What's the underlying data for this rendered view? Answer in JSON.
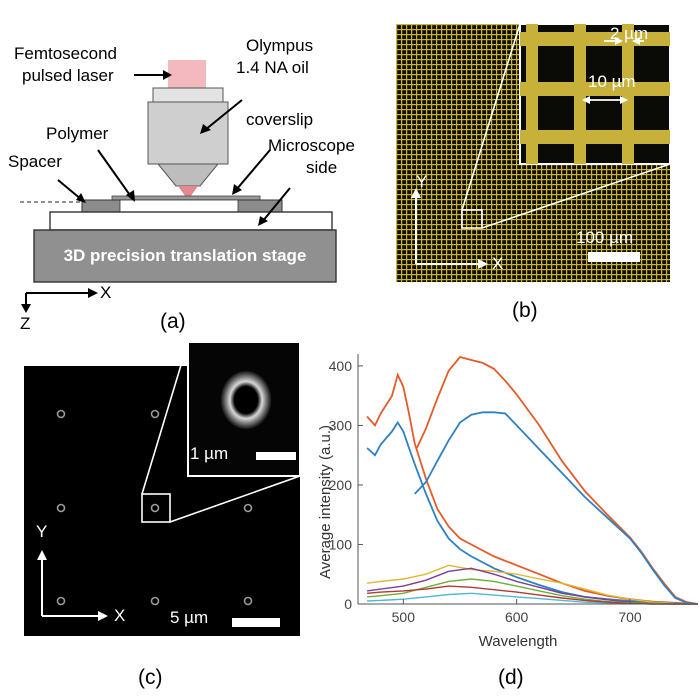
{
  "panel_a": {
    "laser_label_1": "Femtosecond",
    "laser_label_2": "pulsed laser",
    "objective_label_1": "Olympus",
    "objective_label_2": "1.4 NA oil",
    "polymer_label": "Polymer",
    "coverslip_label": "coverslip",
    "spacer_label": "Spacer",
    "microscope_label_1": "Microscope",
    "microscope_label_2": "side",
    "stage_label": "3D precision translation stage",
    "axis_x": "X",
    "axis_z": "Z",
    "caption": "(a)"
  },
  "panel_b": {
    "inset_measure_1": "2 µm",
    "inset_measure_2": "10 µm",
    "axis_y": "Y",
    "axis_x": "X",
    "scale_bar": "100 µm",
    "caption": "(b)"
  },
  "panel_c": {
    "inset_scale": "1 µm",
    "axis_y": "Y",
    "axis_x": "X",
    "scale_bar": "5 µm",
    "caption": "(c)"
  },
  "panel_d": {
    "caption": "(d)"
  },
  "colors": {
    "laser": "#f4b9bf",
    "grid_yellow": "#d9c43a",
    "blue": "#2f80c3",
    "orange": "#e35b2a"
  },
  "chart_data": {
    "type": "line",
    "xlabel": "Wavelength",
    "ylabel": "Average intensity (a.u.)",
    "xlim": [
      460,
      760
    ],
    "ylim": [
      0,
      420
    ],
    "xticks": [
      500,
      600,
      700
    ],
    "yticks": [
      0,
      100,
      200,
      300,
      400
    ],
    "grid": false,
    "series": [
      {
        "color": "#e35b2a",
        "x": [
          468,
          475,
          480,
          490,
          495,
          500,
          505,
          510,
          520,
          530,
          540,
          550,
          560,
          580,
          600,
          620,
          640,
          660,
          680,
          700,
          720,
          740,
          750,
          760
        ],
        "y": [
          315,
          300,
          320,
          350,
          385,
          365,
          320,
          270,
          210,
          160,
          130,
          110,
          100,
          80,
          65,
          50,
          35,
          22,
          14,
          8,
          4,
          2,
          1,
          0
        ]
      },
      {
        "color": "#2f80c3",
        "x": [
          468,
          475,
          480,
          490,
          495,
          500,
          505,
          510,
          520,
          530,
          540,
          550,
          560,
          580,
          600,
          620,
          640,
          660,
          680,
          700,
          720,
          740,
          750,
          760
        ],
        "y": [
          262,
          250,
          268,
          290,
          305,
          290,
          262,
          235,
          185,
          140,
          110,
          92,
          80,
          60,
          45,
          32,
          20,
          12,
          8,
          5,
          3,
          1,
          0,
          0
        ]
      },
      {
        "color": "#e35b2a",
        "x": [
          512,
          520,
          530,
          540,
          550,
          560,
          570,
          580,
          590,
          600,
          620,
          640,
          660,
          680,
          700,
          710,
          720,
          730,
          740,
          750,
          760
        ],
        "y": [
          262,
          295,
          345,
          392,
          415,
          410,
          405,
          395,
          375,
          352,
          300,
          240,
          190,
          150,
          112,
          88,
          60,
          35,
          12,
          3,
          0
        ]
      },
      {
        "color": "#2f80c3",
        "x": [
          510,
          520,
          530,
          540,
          550,
          560,
          570,
          580,
          590,
          600,
          620,
          640,
          660,
          680,
          700,
          710,
          720,
          730,
          740,
          750,
          760
        ],
        "y": [
          185,
          205,
          240,
          275,
          305,
          318,
          322,
          322,
          320,
          300,
          260,
          220,
          180,
          145,
          110,
          86,
          58,
          32,
          10,
          2,
          0
        ]
      },
      {
        "color": "#e0b82e",
        "x": [
          468,
          480,
          500,
          520,
          540,
          560,
          580,
          600,
          620,
          640,
          660,
          680,
          700,
          720,
          740,
          760
        ],
        "y": [
          35,
          38,
          42,
          50,
          65,
          58,
          55,
          50,
          42,
          35,
          25,
          15,
          8,
          3,
          1,
          0
        ]
      },
      {
        "color": "#7e3d96",
        "x": [
          468,
          480,
          500,
          520,
          540,
          560,
          580,
          600,
          620,
          640,
          660,
          680,
          700,
          720,
          740,
          760
        ],
        "y": [
          22,
          25,
          30,
          40,
          55,
          60,
          50,
          38,
          28,
          18,
          12,
          7,
          3,
          1,
          0,
          0
        ]
      },
      {
        "color": "#6fae3a",
        "x": [
          468,
          480,
          500,
          520,
          540,
          560,
          580,
          600,
          620,
          640,
          660,
          680,
          700,
          720,
          740,
          760
        ],
        "y": [
          12,
          14,
          18,
          28,
          38,
          42,
          38,
          30,
          22,
          14,
          8,
          4,
          2,
          1,
          0,
          0
        ]
      },
      {
        "color": "#52b8d8",
        "x": [
          468,
          480,
          500,
          520,
          540,
          560,
          580,
          600,
          620,
          640,
          660,
          680,
          700,
          720,
          740,
          760
        ],
        "y": [
          5,
          6,
          8,
          12,
          16,
          18,
          15,
          12,
          9,
          6,
          3,
          2,
          1,
          0,
          0,
          0
        ]
      },
      {
        "color": "#b33a30",
        "x": [
          468,
          480,
          500,
          520,
          540,
          560,
          580,
          600,
          620,
          640,
          660,
          680,
          700,
          720,
          740,
          760
        ],
        "y": [
          18,
          20,
          22,
          25,
          30,
          28,
          24,
          20,
          15,
          10,
          6,
          3,
          1,
          0,
          0,
          0
        ]
      }
    ]
  }
}
